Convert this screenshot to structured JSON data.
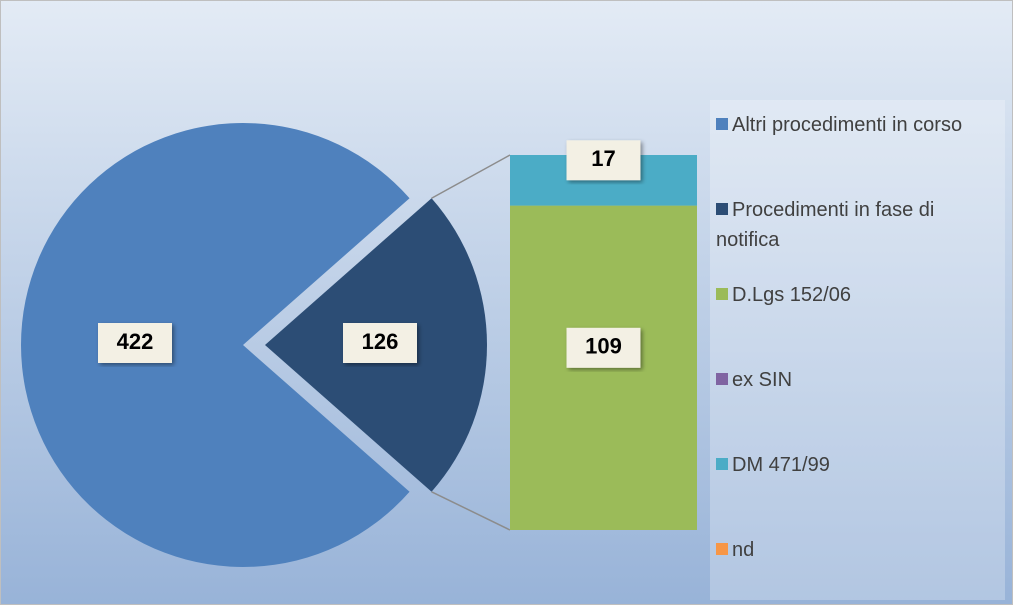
{
  "chart_data": {
    "type": "pie",
    "pie": {
      "categories": [
        "Altri procedimenti in corso",
        "Procedimenti in fase di notifica"
      ],
      "values": [
        422,
        126
      ],
      "colors": [
        "#4f81bd",
        "#2c4d75"
      ]
    },
    "bar": {
      "categories": [
        "D.Lgs 152/06",
        "ex SIN",
        "DM 471/99",
        "nd"
      ],
      "values": [
        109,
        0,
        17,
        0
      ],
      "colors": [
        "#9bbb59",
        "#8064a2",
        "#4bacc6",
        "#f79646"
      ]
    },
    "legend": "right"
  }
}
